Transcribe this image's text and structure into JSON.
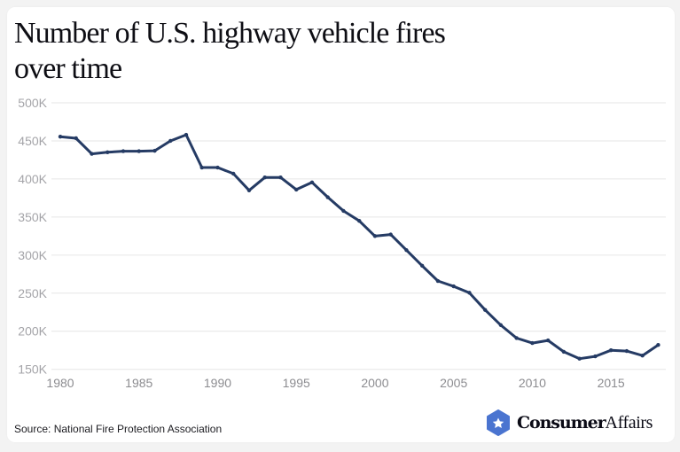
{
  "title": "Number of U.S. highway vehicle fires over time",
  "source": "Source: National Fire Protection Association",
  "brand": {
    "bold": "Consumer",
    "light": "Affairs",
    "icon": "star-hexagon-icon",
    "color": "#4a74d0"
  },
  "colors": {
    "line": "#253b64",
    "grid": "#e6e6e6",
    "background": "#f3f3f3",
    "card": "#ffffff"
  },
  "chart_data": {
    "type": "line",
    "title": "Number of U.S. highway vehicle fires over time",
    "xlabel": "",
    "ylabel": "",
    "xlim": [
      1980,
      2018
    ],
    "ylim": [
      150000,
      500000
    ],
    "grid": true,
    "legend": "none",
    "x_ticks": [
      "1980",
      "1985",
      "1990",
      "1995",
      "2000",
      "2005",
      "2010",
      "2015"
    ],
    "x_tick_values": [
      1980,
      1985,
      1990,
      1995,
      2000,
      2005,
      2010,
      2015
    ],
    "y_ticks": [
      "500K",
      "450K",
      "400K",
      "350K",
      "300K",
      "250K",
      "200K",
      "150K"
    ],
    "y_tick_values": [
      500000,
      450000,
      400000,
      350000,
      300000,
      250000,
      200000,
      150000
    ],
    "series": [
      {
        "name": "Highway vehicle fires",
        "x": [
          1980,
          1981,
          1982,
          1983,
          1984,
          1985,
          1986,
          1987,
          1988,
          1989,
          1990,
          1991,
          1992,
          1993,
          1994,
          1995,
          1996,
          1997,
          1998,
          1999,
          2000,
          2001,
          2002,
          2003,
          2004,
          2005,
          2006,
          2007,
          2008,
          2009,
          2010,
          2011,
          2012,
          2013,
          2014,
          2015,
          2016,
          2017,
          2018
        ],
        "values": [
          455500,
          453500,
          433000,
          435000,
          436500,
          436500,
          437000,
          450000,
          458000,
          415000,
          415000,
          407000,
          385000,
          402000,
          402000,
          386000,
          395500,
          376000,
          358000,
          345000,
          325000,
          327000,
          306500,
          286000,
          266000,
          259000,
          250500,
          228000,
          208000,
          191000,
          184500,
          188000,
          173000,
          164000,
          167000,
          175000,
          174000,
          168000,
          182000
        ]
      }
    ]
  }
}
